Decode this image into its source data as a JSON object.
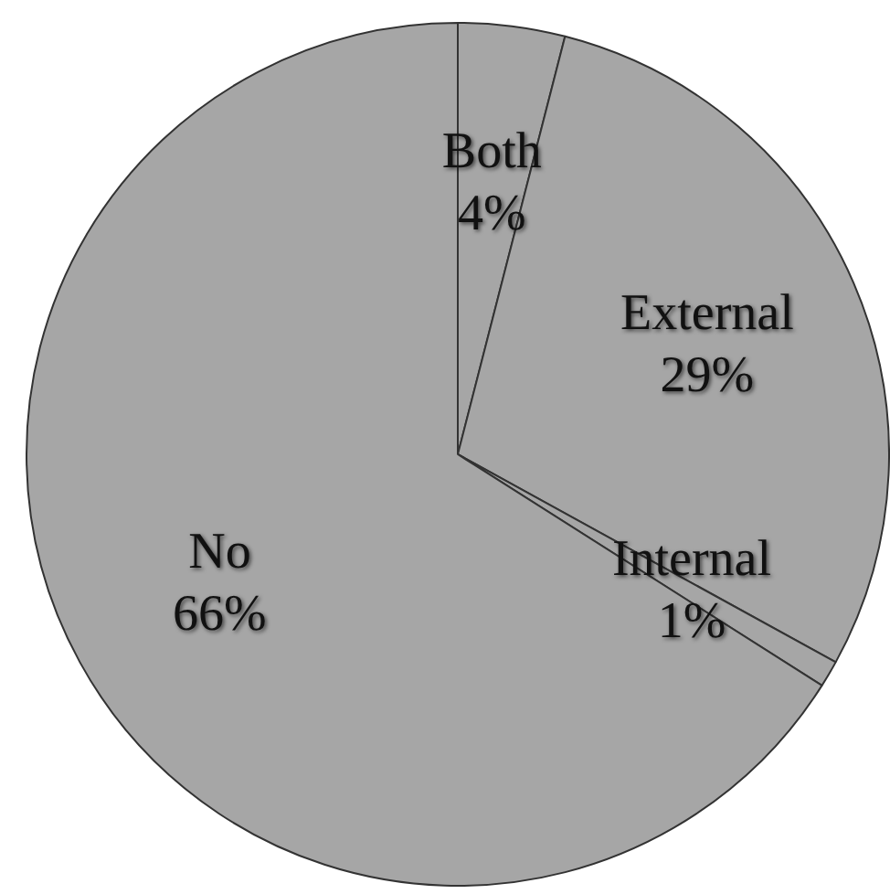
{
  "chart_data": {
    "type": "pie",
    "categories": [
      "Both",
      "External",
      "Internal",
      "No"
    ],
    "values": [
      4,
      29,
      1,
      66
    ],
    "colors": [
      "#a6a6a6",
      "#a6a6a6",
      "#a6a6a6",
      "#a6a6a6"
    ],
    "value_labels": [
      "4%",
      "29%",
      "1%",
      "66%"
    ],
    "legend": false
  }
}
